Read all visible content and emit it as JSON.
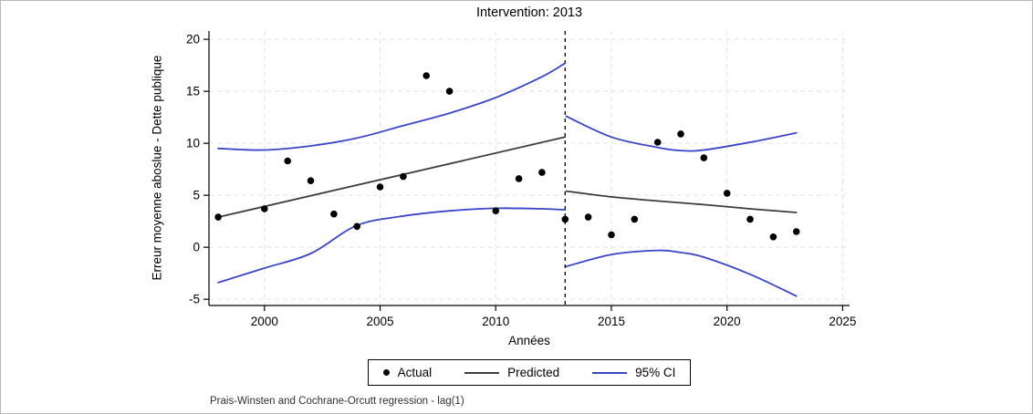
{
  "chart_data": {
    "type": "scatter",
    "title": "Intervention: 2013",
    "xlabel": "Années",
    "ylabel": "Erreur moyenne aboslue - Dette publique",
    "note": "Prais-Winsten and Cochrane-Orcutt regression - lag(1)",
    "x_ticks": [
      2000,
      2005,
      2010,
      2015,
      2020,
      2025
    ],
    "y_ticks": [
      -5,
      0,
      5,
      10,
      15,
      20
    ],
    "xlim": [
      1997.6,
      2025.3
    ],
    "ylim": [
      -5.6,
      20.8
    ],
    "grid": true,
    "intervention_year": 2013,
    "intervention_line_style": "dashed-black",
    "colors": {
      "actual": "#000000",
      "predicted": "#3c3c3c",
      "ci": "#3a45c8",
      "gridline": "#e4e4e4",
      "axis": "#000000"
    },
    "legend": {
      "position": "bottom-center",
      "items": [
        {
          "label": "Actual",
          "marker": "dot",
          "color": "#000000"
        },
        {
          "label": "Predicted",
          "marker": "line",
          "color": "#3c3c3c"
        },
        {
          "label": "95% CI",
          "marker": "line",
          "color": "#3a45c8"
        }
      ]
    },
    "series": [
      {
        "name": "Actual",
        "kind": "scatter",
        "color": "#000000",
        "radius": 3.8,
        "points": [
          [
            1998,
            2.9
          ],
          [
            2000,
            3.7
          ],
          [
            2001,
            8.3
          ],
          [
            2002,
            6.4
          ],
          [
            2003,
            3.2
          ],
          [
            2004,
            2.0
          ],
          [
            2005,
            5.8
          ],
          [
            2006,
            6.8
          ],
          [
            2007,
            16.5
          ],
          [
            2008,
            15.0
          ],
          [
            2010,
            3.5
          ],
          [
            2011,
            6.6
          ],
          [
            2012,
            7.2
          ],
          [
            2013,
            2.7
          ],
          [
            2014,
            2.9
          ],
          [
            2015,
            1.2
          ],
          [
            2016,
            2.7
          ],
          [
            2017,
            10.1
          ],
          [
            2018,
            10.9
          ],
          [
            2019,
            8.6
          ],
          [
            2020,
            5.2
          ],
          [
            2021,
            2.7
          ],
          [
            2022,
            1.0
          ],
          [
            2023,
            1.5
          ]
        ]
      },
      {
        "name": "Predicted (pre-intervention)",
        "kind": "line",
        "color": "#3c3c3c",
        "width": 1.8,
        "smooth": false,
        "points": [
          [
            1998,
            2.9
          ],
          [
            2013,
            10.6
          ]
        ]
      },
      {
        "name": "Predicted (post-intervention)",
        "kind": "line",
        "color": "#3c3c3c",
        "width": 1.8,
        "smooth": true,
        "points": [
          [
            2013.05,
            5.4
          ],
          [
            2015,
            4.85
          ],
          [
            2017,
            4.45
          ],
          [
            2019,
            4.1
          ],
          [
            2021,
            3.7
          ],
          [
            2023,
            3.35
          ]
        ]
      },
      {
        "name": "95% CI upper (pre-intervention)",
        "kind": "line",
        "color": "#3a45c8",
        "width": 1.8,
        "smooth": true,
        "points": [
          [
            1998,
            9.5
          ],
          [
            2000,
            9.35
          ],
          [
            2002,
            9.75
          ],
          [
            2004,
            10.5
          ],
          [
            2006,
            11.7
          ],
          [
            2008,
            12.9
          ],
          [
            2010,
            14.4
          ],
          [
            2012,
            16.4
          ],
          [
            2013,
            17.7
          ]
        ]
      },
      {
        "name": "95% CI lower (pre-intervention)",
        "kind": "line",
        "color": "#3a45c8",
        "width": 1.8,
        "smooth": true,
        "points": [
          [
            1998,
            -3.4
          ],
          [
            2000,
            -2.0
          ],
          [
            2002,
            -0.6
          ],
          [
            2004,
            2.1
          ],
          [
            2006,
            3.0
          ],
          [
            2008,
            3.5
          ],
          [
            2010,
            3.75
          ],
          [
            2012,
            3.7
          ],
          [
            2013,
            3.6
          ]
        ]
      },
      {
        "name": "95% CI upper (post-intervention)",
        "kind": "line",
        "color": "#3a45c8",
        "width": 1.8,
        "smooth": true,
        "points": [
          [
            2013.05,
            12.6
          ],
          [
            2015,
            10.6
          ],
          [
            2017,
            9.6
          ],
          [
            2018,
            9.3
          ],
          [
            2019,
            9.35
          ],
          [
            2021,
            10.1
          ],
          [
            2023,
            11.0
          ]
        ]
      },
      {
        "name": "95% CI lower (post-intervention)",
        "kind": "line",
        "color": "#3a45c8",
        "width": 1.8,
        "smooth": true,
        "points": [
          [
            2013.05,
            -1.85
          ],
          [
            2015,
            -0.7
          ],
          [
            2017,
            -0.3
          ],
          [
            2018,
            -0.5
          ],
          [
            2019,
            -0.95
          ],
          [
            2021,
            -2.6
          ],
          [
            2023,
            -4.7
          ]
        ]
      }
    ]
  }
}
